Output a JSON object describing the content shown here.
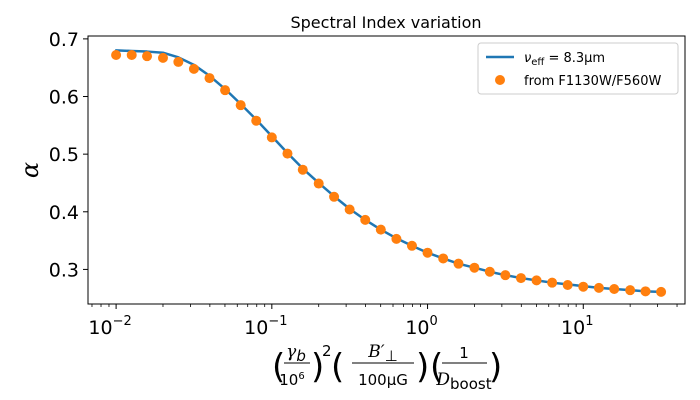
{
  "colors": {
    "line": "#1f77b4",
    "points": "#ff7f0e"
  },
  "chart_data": {
    "type": "line",
    "title": "Spectral Index variation",
    "ylabel": "α",
    "xlabel_parts": {
      "frac1_num": "γ",
      "frac1_num_sub": "b",
      "frac1_den": "10",
      "frac1_den_sup": "6",
      "square": "2",
      "frac2_num": "B′",
      "frac2_num_sub": "⊥",
      "frac2_den": "100μG",
      "frac3_num": "1",
      "frac3_den": "D",
      "frac3_den_sub": "boost"
    },
    "x_scale": "log",
    "xlim": [
      0.0066,
      45
    ],
    "ylim": [
      0.24,
      0.705
    ],
    "y_ticks": [
      0.3,
      0.4,
      0.5,
      0.6,
      0.7
    ],
    "y_tick_labels": [
      "0.3",
      "0.4",
      "0.5",
      "0.6",
      "0.7"
    ],
    "x_ticks": [
      0.01,
      0.1,
      1,
      10
    ],
    "x_tick_labels": [
      {
        "base": "10",
        "exp": "−2"
      },
      {
        "base": "10",
        "exp": "−1"
      },
      {
        "base": "10",
        "exp": "0"
      },
      {
        "base": "10",
        "exp": "1"
      }
    ],
    "legend": {
      "position": "top-right",
      "entries": [
        {
          "prefix": "ν",
          "sub": "eff",
          "text": " = 8.3μm"
        },
        {
          "text": "from F1130W/F560W"
        }
      ]
    },
    "series": [
      {
        "name": "nu_eff = 8.3 um",
        "kind": "line",
        "x": [
          0.01,
          0.0126,
          0.0158,
          0.02,
          0.0251,
          0.0316,
          0.0398,
          0.0501,
          0.0631,
          0.0794,
          0.1,
          0.126,
          0.158,
          0.2,
          0.251,
          0.316,
          0.398,
          0.501,
          0.631,
          0.794,
          1.0,
          1.26,
          1.58,
          2.0,
          2.51,
          3.16,
          3.98,
          5.01,
          6.31,
          7.94,
          10.0,
          12.6,
          15.8,
          20.0,
          25.1,
          31.6
        ],
        "values": [
          0.68,
          0.679,
          0.678,
          0.676,
          0.668,
          0.655,
          0.636,
          0.613,
          0.587,
          0.56,
          0.531,
          0.502,
          0.475,
          0.45,
          0.427,
          0.405,
          0.386,
          0.369,
          0.354,
          0.341,
          0.329,
          0.319,
          0.31,
          0.303,
          0.296,
          0.29,
          0.285,
          0.281,
          0.277,
          0.274,
          0.271,
          0.268,
          0.266,
          0.264,
          0.262,
          0.261
        ]
      },
      {
        "name": "from F1130W/F560W",
        "kind": "scatter",
        "x": [
          0.01,
          0.0126,
          0.0158,
          0.02,
          0.0251,
          0.0316,
          0.0398,
          0.0501,
          0.0631,
          0.0794,
          0.1,
          0.126,
          0.158,
          0.2,
          0.251,
          0.316,
          0.398,
          0.501,
          0.631,
          0.794,
          1.0,
          1.26,
          1.58,
          2.0,
          2.51,
          3.16,
          3.98,
          5.01,
          6.31,
          7.94,
          10.0,
          12.6,
          15.8,
          20.0,
          25.1,
          31.6
        ],
        "values": [
          0.672,
          0.672,
          0.67,
          0.667,
          0.66,
          0.648,
          0.632,
          0.611,
          0.585,
          0.558,
          0.529,
          0.501,
          0.473,
          0.449,
          0.426,
          0.404,
          0.386,
          0.369,
          0.353,
          0.341,
          0.329,
          0.319,
          0.31,
          0.303,
          0.296,
          0.29,
          0.285,
          0.281,
          0.277,
          0.273,
          0.27,
          0.268,
          0.266,
          0.264,
          0.262,
          0.261
        ]
      }
    ]
  }
}
